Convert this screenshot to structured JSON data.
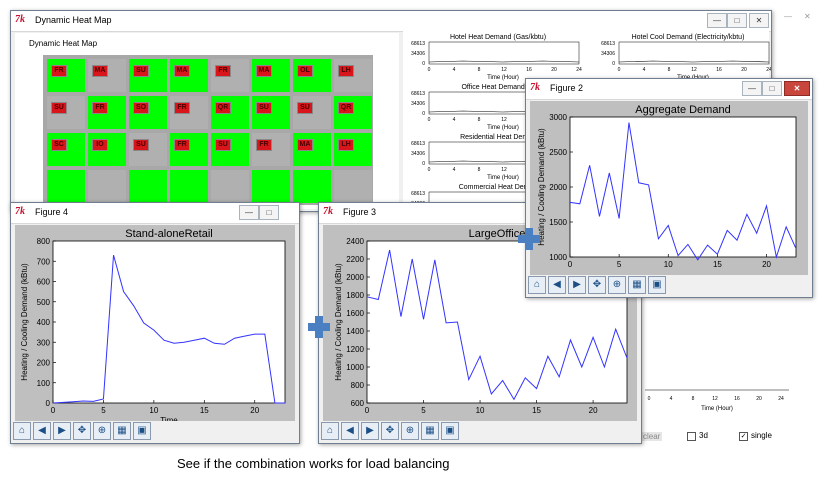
{
  "heatmap_window": {
    "title": "Dynamic Heat Map",
    "panel_title": "Dynamic Heat Map"
  },
  "mini_charts": [
    {
      "title": "Hotel Heat Demand (Gas/kbtu)",
      "ytop": "68613",
      "ymid": "34306",
      "y0": "0",
      "xticks": [
        "0",
        "4",
        "8",
        "12",
        "16",
        "20",
        "24"
      ],
      "xlabel": "Time (Hour)"
    },
    {
      "title": "Hotel Cool Demand (Electricity/kbtu)",
      "ytop": "68613",
      "ymid": "34306",
      "y0": "0",
      "xticks": [
        "0",
        "4",
        "8",
        "12",
        "16",
        "20",
        "24"
      ],
      "xlabel": "Time (Hour)"
    },
    {
      "title": "Office Heat Demand (G",
      "ytop": "68613",
      "ymid": "34306",
      "y0": "0",
      "xticks": [
        "0",
        "4",
        "8",
        "12"
      ],
      "xlabel": "Time (Hour)"
    },
    {
      "title": "Residential Heat Deman",
      "ytop": "68613",
      "ymid": "34306",
      "y0": "0",
      "xticks": [
        "0",
        "4",
        "8",
        "12"
      ],
      "xlabel": "Time (Hour)"
    },
    {
      "title": "Commercial Heat Deman",
      "ytop": "68613",
      "ymid": "34306",
      "y0": "0",
      "xticks": [],
      "xlabel": ""
    }
  ],
  "bottom_mini": {
    "xticks": [
      "0",
      "4",
      "8",
      "12",
      "16",
      "20",
      "24"
    ],
    "xlabel": "Time (Hour)"
  },
  "controls": {
    "clear": "clear",
    "check_3d": "3d",
    "check_single": "single"
  },
  "map_labels": [
    "FR",
    "MA",
    "SU",
    "MA",
    "FR",
    "MA",
    "OL",
    "LH",
    "SU",
    "FR",
    "SO",
    "FR",
    "QR",
    "SU",
    "SU",
    "QR",
    "SC",
    "IO",
    "SU",
    "FR",
    "SU",
    "FR",
    "MA",
    "LH"
  ],
  "toolbar_icons": [
    "home-icon",
    "back-icon",
    "forward-icon",
    "pan-icon",
    "zoom-icon",
    "configure-icon",
    "save-icon"
  ],
  "figures": {
    "fig4": {
      "window_title": "Figure 4"
    },
    "fig3": {
      "window_title": "Figure 3"
    },
    "fig2": {
      "window_title": "Figure 2"
    }
  },
  "caption": "See if the combination works for load balancing",
  "colors": {
    "line": "#3333ff",
    "plot_bg": "#bfbfbf",
    "map_green": "#00ff00",
    "map_red": "#d8151b"
  },
  "chart_data": [
    {
      "type": "line",
      "title": "Stand-aloneRetail",
      "xlabel": "Time",
      "ylabel": "Heating / Cooling Demand (kBtu)",
      "x": [
        0,
        1,
        2,
        3,
        4,
        5,
        6,
        7,
        8,
        9,
        10,
        11,
        12,
        13,
        14,
        15,
        16,
        17,
        18,
        19,
        20,
        21,
        22,
        23
      ],
      "series": [
        {
          "values": [
            0,
            3,
            6,
            10,
            8,
            20,
            730,
            550,
            480,
            395,
            360,
            310,
            295,
            300,
            310,
            320,
            295,
            290,
            320,
            330,
            340,
            340,
            0,
            0
          ]
        }
      ],
      "xlim": [
        0,
        23
      ],
      "ylim": [
        0,
        800
      ],
      "xticks": [
        0,
        5,
        10,
        15,
        20
      ],
      "yticks": [
        0,
        100,
        200,
        300,
        400,
        500,
        600,
        700,
        800
      ],
      "grid": false
    },
    {
      "type": "line",
      "title": "LargeOffice",
      "xlabel": "",
      "ylabel": "Heating / Cooling Demand (kBtu)",
      "x": [
        0,
        1,
        2,
        3,
        4,
        5,
        6,
        7,
        8,
        9,
        10,
        11,
        12,
        13,
        14,
        15,
        16,
        17,
        18,
        19,
        20,
        21,
        22,
        23
      ],
      "series": [
        {
          "values": [
            1780,
            1750,
            2300,
            1560,
            2200,
            1530,
            2190,
            1490,
            1500,
            860,
            1120,
            700,
            850,
            640,
            880,
            760,
            1120,
            890,
            1300,
            1000,
            1330,
            1000,
            1420,
            1100
          ]
        }
      ],
      "xlim": [
        0,
        23
      ],
      "ylim": [
        600,
        2400
      ],
      "xticks": [
        0,
        5,
        10,
        15,
        20
      ],
      "yticks": [
        600,
        800,
        1000,
        1200,
        1400,
        1600,
        1800,
        2000,
        2200,
        2400
      ],
      "grid": false
    },
    {
      "type": "line",
      "title": "Aggregate Demand",
      "xlabel": "",
      "ylabel": "Heating / Cooling Demand (kBtu)",
      "x": [
        0,
        1,
        2,
        3,
        4,
        5,
        6,
        7,
        8,
        9,
        10,
        11,
        12,
        13,
        14,
        15,
        16,
        17,
        18,
        19,
        20,
        21,
        22,
        23
      ],
      "series": [
        {
          "values": [
            1780,
            1760,
            2310,
            1580,
            2200,
            1550,
            2920,
            2060,
            2030,
            1260,
            1450,
            1020,
            1180,
            960,
            1170,
            1040,
            1380,
            1240,
            1610,
            1340,
            1730,
            1000,
            1430,
            1120
          ]
        }
      ],
      "xlim": [
        0,
        23
      ],
      "ylim": [
        1000,
        3000
      ],
      "xticks": [
        0,
        5,
        10,
        15,
        20
      ],
      "yticks": [
        1000,
        1500,
        2000,
        2500,
        3000
      ],
      "grid": false
    }
  ]
}
